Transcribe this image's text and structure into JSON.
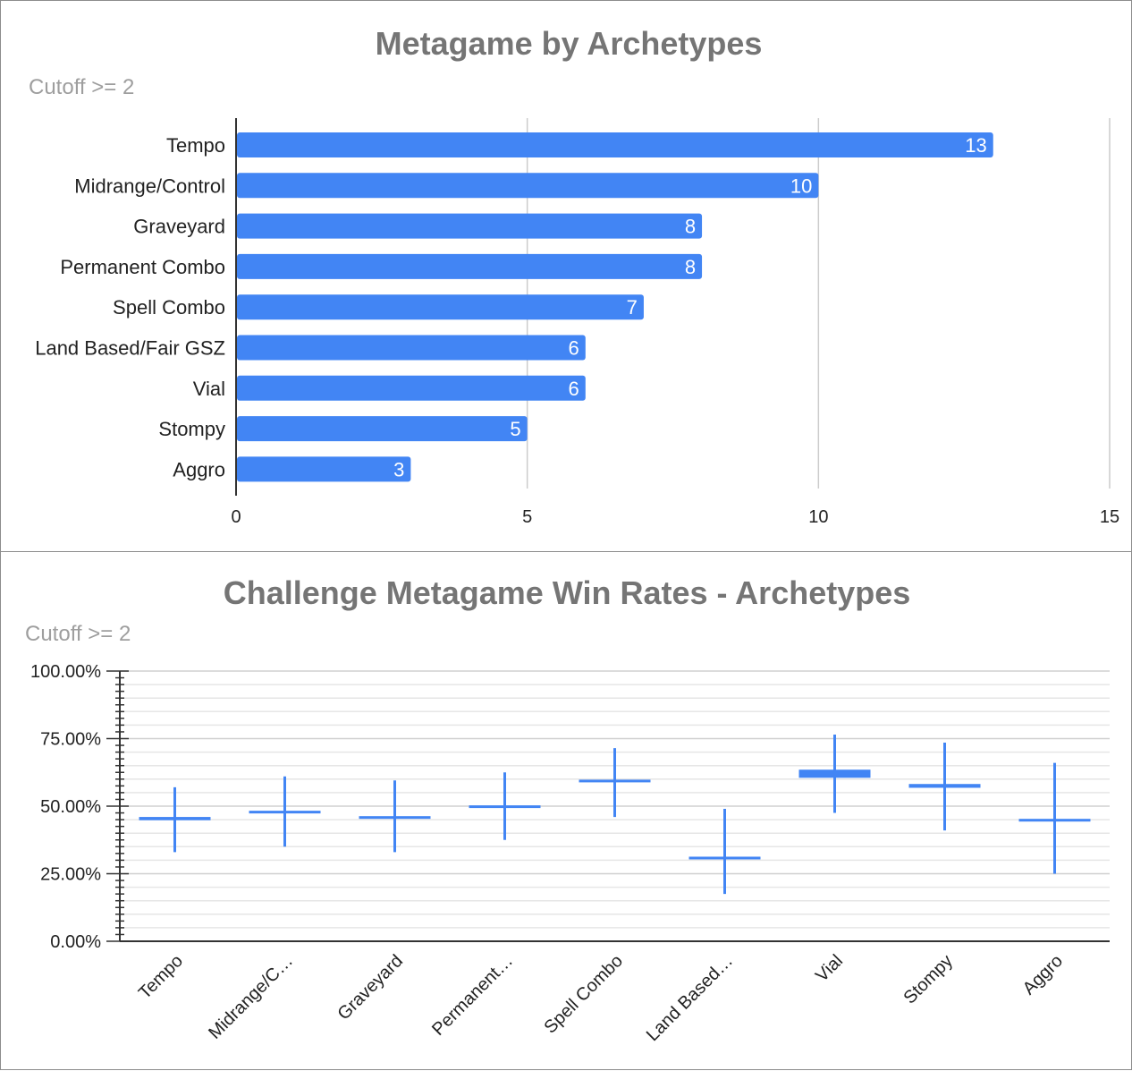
{
  "chart_data": [
    {
      "type": "bar",
      "orientation": "horizontal",
      "title": "Metagame by Archetypes",
      "subtitle": "Cutoff >= 2",
      "categories": [
        "Tempo",
        "Midrange/Control",
        "Graveyard",
        "Permanent Combo",
        "Spell Combo",
        "Land Based/Fair GSZ",
        "Vial",
        "Stompy",
        "Aggro"
      ],
      "values": [
        13,
        10,
        8,
        8,
        7,
        6,
        6,
        5,
        3
      ],
      "xlim": [
        0,
        15
      ],
      "xticks": [
        "0",
        "5",
        "10",
        "15"
      ],
      "grid": "vertical",
      "color": "#4285f4"
    },
    {
      "type": "candlestick",
      "title": "Challenge Metagame Win Rates - Archetypes",
      "subtitle": "Cutoff >= 2",
      "categories": [
        "Tempo",
        "Midrange/C…",
        "Graveyard",
        "Permanent…",
        "Spell Combo",
        "Land Based…",
        "Vial",
        "Stompy",
        "Aggro"
      ],
      "series": [
        {
          "category": "Tempo",
          "low": 33.0,
          "open": 44.8,
          "close": 46.0,
          "high": 57.0
        },
        {
          "category": "Midrange/C…",
          "low": 35.0,
          "open": 47.7,
          "close": 48.3,
          "high": 61.0
        },
        {
          "category": "Graveyard",
          "low": 33.0,
          "open": 45.5,
          "close": 46.3,
          "high": 59.5
        },
        {
          "category": "Permanent…",
          "low": 37.5,
          "open": 49.7,
          "close": 50.3,
          "high": 62.5
        },
        {
          "category": "Spell Combo",
          "low": 46.0,
          "open": 59.2,
          "close": 59.8,
          "high": 71.5
        },
        {
          "category": "Land Based…",
          "low": 17.5,
          "open": 30.7,
          "close": 31.3,
          "high": 49.0
        },
        {
          "category": "Vial",
          "low": 47.5,
          "open": 60.5,
          "close": 63.5,
          "high": 76.5
        },
        {
          "category": "Stompy",
          "low": 41.0,
          "open": 56.8,
          "close": 58.2,
          "high": 73.5
        },
        {
          "category": "Aggro",
          "low": 25.0,
          "open": 44.3,
          "close": 45.3,
          "high": 66.0
        }
      ],
      "ylim": [
        0,
        100
      ],
      "yticks": [
        "0.00%",
        "25.00%",
        "50.00%",
        "75.00%",
        "100.00%"
      ],
      "grid": "horizontal",
      "color": "#4285f4"
    }
  ]
}
